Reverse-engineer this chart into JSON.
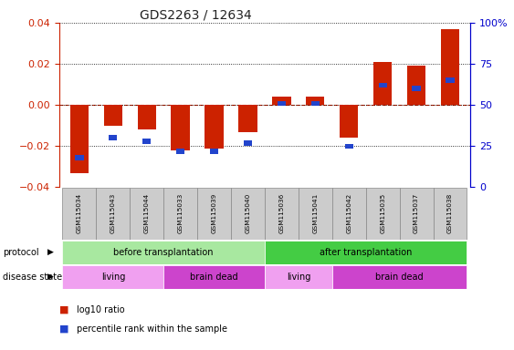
{
  "title": "GDS2263 / 12634",
  "samples": [
    "GSM115034",
    "GSM115043",
    "GSM115044",
    "GSM115033",
    "GSM115039",
    "GSM115040",
    "GSM115036",
    "GSM115041",
    "GSM115042",
    "GSM115035",
    "GSM115037",
    "GSM115038"
  ],
  "log10_ratio": [
    -0.033,
    -0.01,
    -0.012,
    -0.022,
    -0.021,
    -0.013,
    0.004,
    0.004,
    -0.016,
    0.021,
    0.019,
    0.037
  ],
  "percentile_rank": [
    18,
    30,
    28,
    22,
    22,
    27,
    51,
    51,
    25,
    62,
    60,
    65
  ],
  "ylim": [
    -0.04,
    0.04
  ],
  "ylim_right": [
    0,
    100
  ],
  "yticks_left": [
    -0.04,
    -0.02,
    0.0,
    0.02,
    0.04
  ],
  "yticks_right": [
    0,
    25,
    50,
    75,
    100
  ],
  "protocol_groups": [
    {
      "label": "before transplantation",
      "start": 0,
      "end": 6,
      "color": "#a8e8a0"
    },
    {
      "label": "after transplantation",
      "start": 6,
      "end": 12,
      "color": "#44cc44"
    }
  ],
  "disease_groups": [
    {
      "label": "living",
      "start": 0,
      "end": 3,
      "color": "#f0a0f0"
    },
    {
      "label": "brain dead",
      "start": 3,
      "end": 6,
      "color": "#cc44cc"
    },
    {
      "label": "living",
      "start": 6,
      "end": 8,
      "color": "#f0a0f0"
    },
    {
      "label": "brain dead",
      "start": 8,
      "end": 12,
      "color": "#cc44cc"
    }
  ],
  "bar_color_red": "#cc2200",
  "bar_color_blue": "#2244cc",
  "zero_line_color": "#cc2200",
  "left_axis_color": "#cc2200",
  "right_axis_color": "#0000cc",
  "bar_width": 0.55,
  "blue_bar_width": 0.25,
  "blue_bar_height": 0.0025,
  "sample_box_color": "#cccccc",
  "sample_box_edge": "#888888"
}
